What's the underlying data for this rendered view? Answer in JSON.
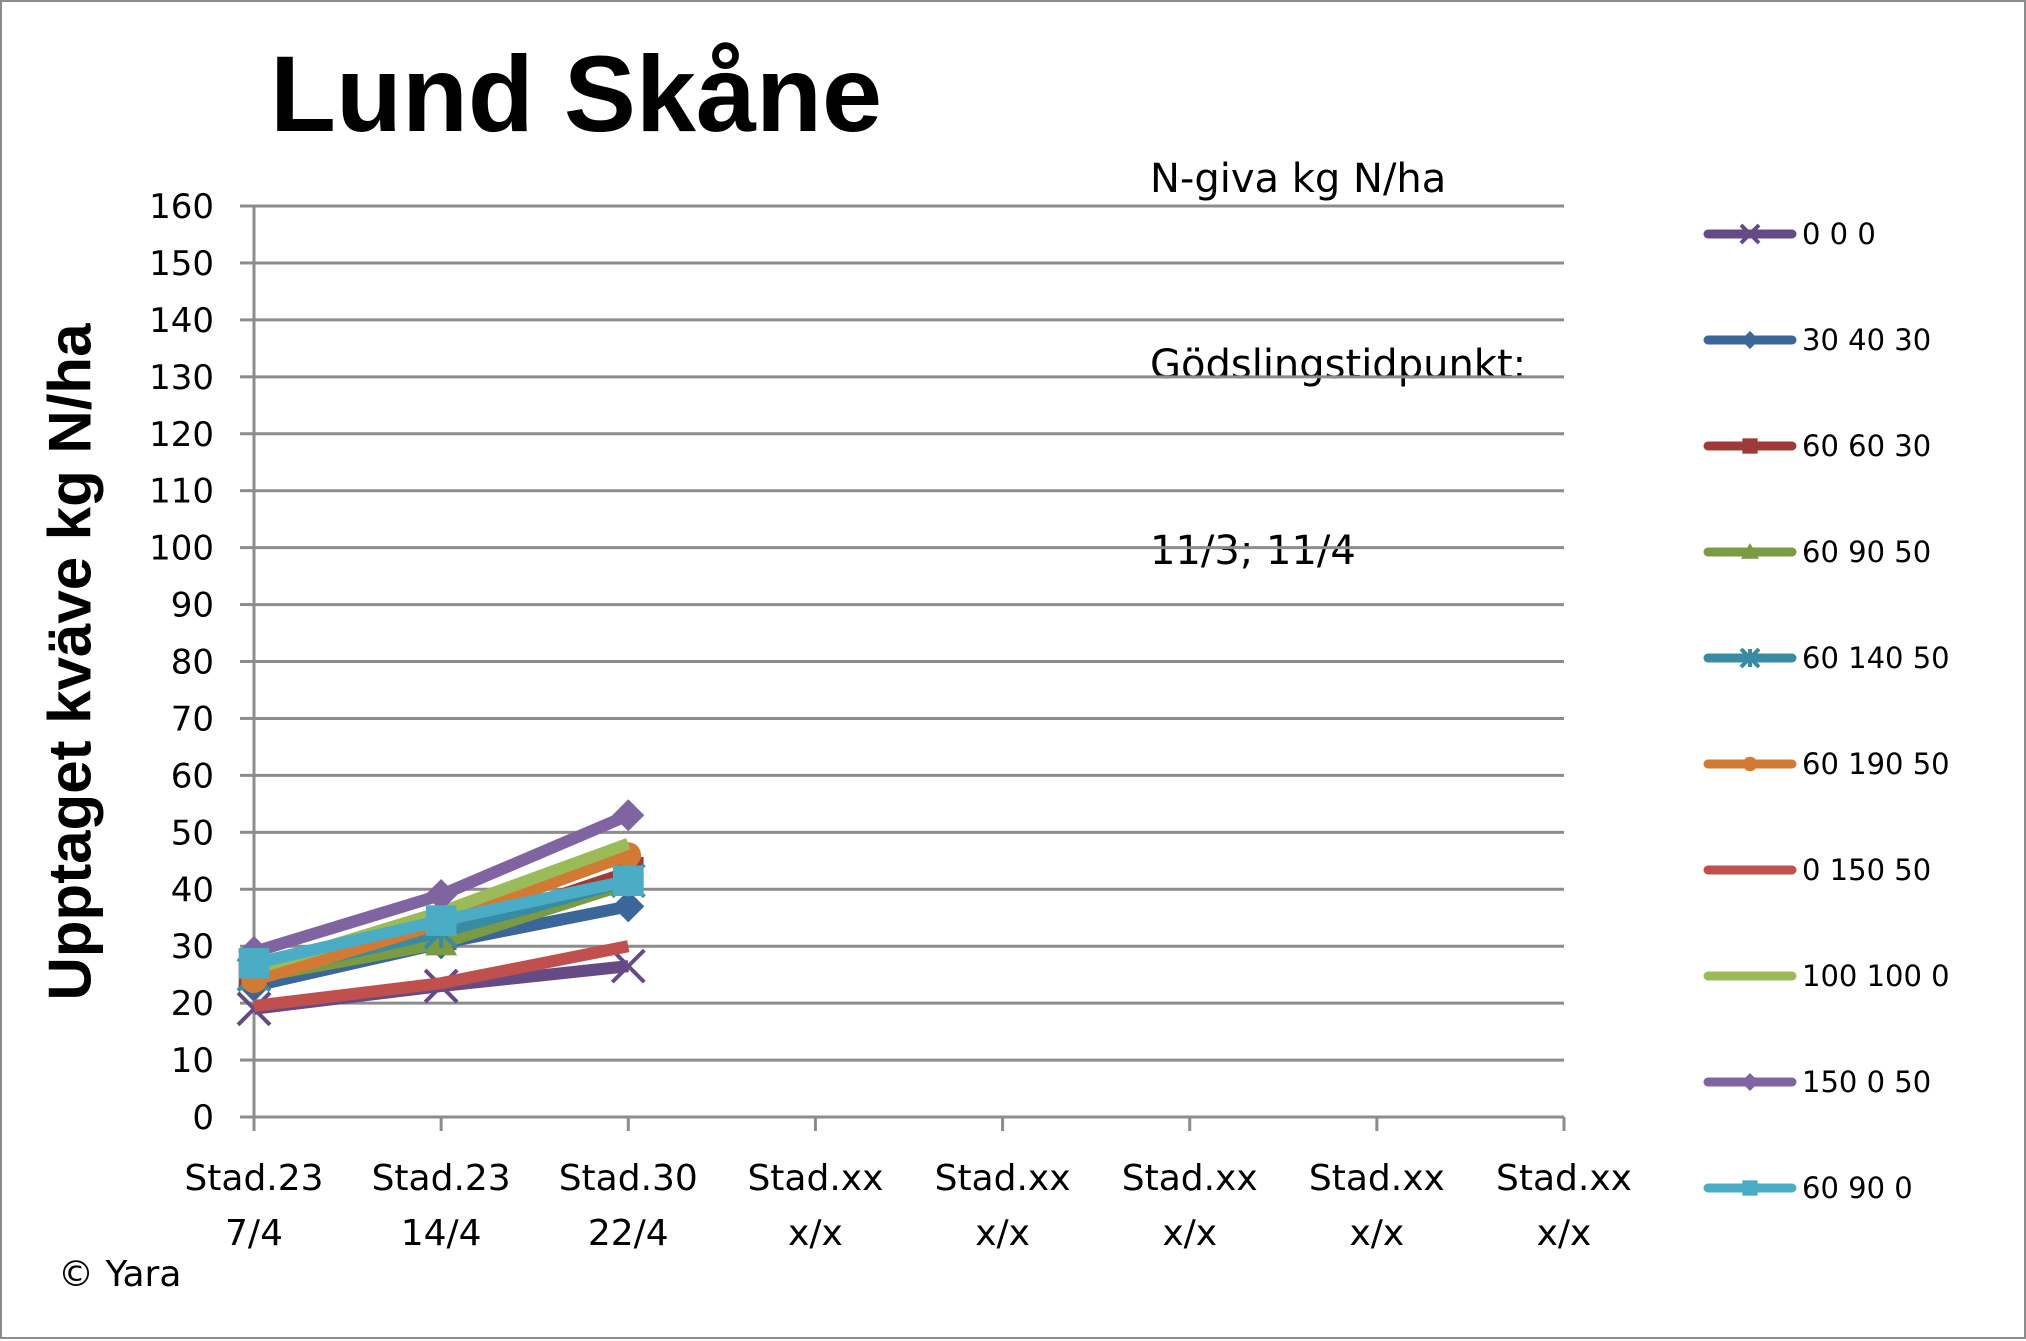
{
  "chart_data": {
    "type": "line",
    "title": "Lund Skåne",
    "subtitle_lines": [
      "N-giva kg N/ha",
      "Gödslingstidpunkt:",
      "11/3; 11/4"
    ],
    "xlabel": "",
    "ylabel": "Upptaget kväve kg N/ha",
    "ylim": [
      0,
      160
    ],
    "yticks": [
      0,
      10,
      20,
      30,
      40,
      50,
      60,
      70,
      80,
      90,
      100,
      110,
      120,
      130,
      140,
      150,
      160
    ],
    "grid": true,
    "legend_position": "right",
    "categories": [
      [
        "Stad.23",
        "7/4"
      ],
      [
        "Stad.23",
        "14/4"
      ],
      [
        "Stad.30",
        "22/4"
      ],
      [
        "Stad.xx",
        "x/x"
      ],
      [
        "Stad.xx",
        "x/x"
      ],
      [
        "Stad.xx",
        "x/x"
      ],
      [
        "Stad.xx",
        "x/x"
      ],
      [
        "Stad.xx",
        "x/x"
      ]
    ],
    "series": [
      {
        "name": "0 0 0",
        "color": "#664a86",
        "marker": "x",
        "values": [
          19,
          23,
          26.5,
          null,
          null,
          null,
          null,
          null
        ]
      },
      {
        "name": "30 40 30",
        "color": "#3a6699",
        "marker": "diamond",
        "values": [
          23,
          30.5,
          37,
          null,
          null,
          null,
          null,
          null
        ]
      },
      {
        "name": "60 60 30",
        "color": "#9e3b38",
        "marker": "square",
        "values": [
          25,
          32,
          43,
          null,
          null,
          null,
          null,
          null
        ]
      },
      {
        "name": "60 90 50",
        "color": "#7a9a43",
        "marker": "triangle",
        "values": [
          24.5,
          30.5,
          41,
          null,
          null,
          null,
          null,
          null
        ]
      },
      {
        "name": "60 140 50",
        "color": "#378ba2",
        "marker": "star",
        "values": [
          25,
          32.5,
          41.5,
          null,
          null,
          null,
          null,
          null
        ]
      },
      {
        "name": "60 190 50",
        "color": "#d27934",
        "marker": "circle",
        "values": [
          24,
          34,
          46,
          null,
          null,
          null,
          null,
          null
        ]
      },
      {
        "name": "0 150 50",
        "color": "#c0504d",
        "marker": "none",
        "values": [
          19.5,
          23.5,
          30,
          null,
          null,
          null,
          null,
          null
        ]
      },
      {
        "name": "100 100 0",
        "color": "#9bbb59",
        "marker": "none",
        "values": [
          26,
          36,
          48,
          null,
          null,
          null,
          null,
          null
        ]
      },
      {
        "name": "150 0 50",
        "color": "#8064a2",
        "marker": "diamond",
        "values": [
          29,
          39,
          53,
          null,
          null,
          null,
          null,
          null
        ]
      },
      {
        "name": "60 90 0",
        "color": "#4bacc6",
        "marker": "square",
        "values": [
          27,
          34.5,
          41.5,
          null,
          null,
          null,
          null,
          null
        ]
      }
    ]
  },
  "footer": {
    "copyright": "© Yara"
  }
}
